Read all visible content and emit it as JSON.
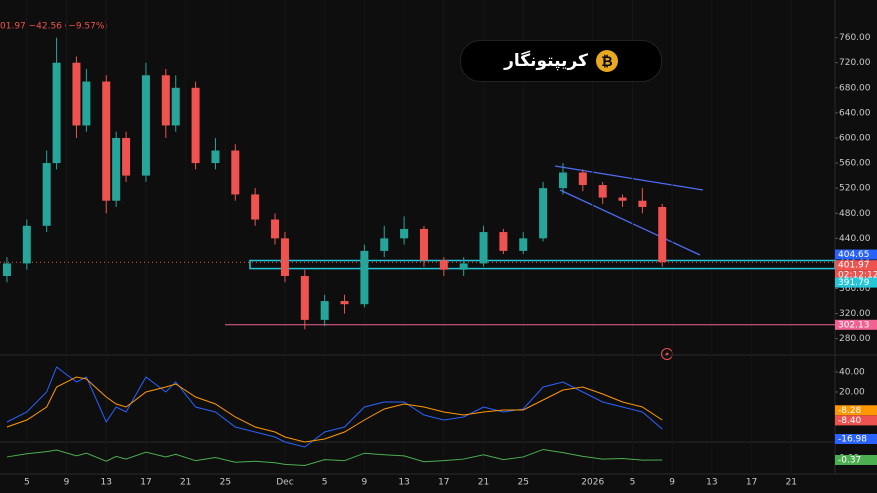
{
  "chart_data": {
    "type": "candlestick",
    "header": "01.97 −42.56 (−9.57%)",
    "x": [
      3,
      5,
      7,
      8,
      10,
      11,
      13,
      14,
      15,
      17,
      19,
      20,
      22,
      24,
      26,
      28,
      30,
      31,
      33,
      35,
      37,
      39,
      41,
      43,
      45,
      47,
      49,
      51,
      53,
      55,
      57,
      59,
      61,
      63,
      65,
      67,
      69
    ],
    "open": [
      380,
      400,
      460,
      560,
      720,
      620,
      690,
      500,
      600,
      540,
      700,
      620,
      680,
      560,
      580,
      510,
      470,
      440,
      380,
      310,
      340,
      335,
      420,
      440,
      455,
      405,
      390,
      400,
      450,
      420,
      440,
      520,
      545,
      525,
      505,
      500,
      490
    ],
    "high": [
      410,
      470,
      580,
      760,
      730,
      710,
      700,
      610,
      610,
      720,
      710,
      700,
      690,
      600,
      590,
      520,
      480,
      450,
      390,
      350,
      350,
      430,
      460,
      475,
      460,
      410,
      410,
      460,
      455,
      450,
      530,
      560,
      550,
      530,
      510,
      520,
      495
    ],
    "low": [
      370,
      390,
      450,
      550,
      600,
      610,
      480,
      490,
      530,
      530,
      600,
      610,
      550,
      550,
      500,
      460,
      430,
      370,
      295,
      300,
      320,
      330,
      410,
      430,
      395,
      380,
      380,
      395,
      415,
      415,
      435,
      510,
      515,
      495,
      490,
      480,
      395
    ],
    "close": [
      400,
      460,
      560,
      720,
      620,
      690,
      500,
      600,
      540,
      700,
      620,
      680,
      560,
      580,
      510,
      470,
      440,
      380,
      310,
      340,
      335,
      420,
      440,
      455,
      405,
      390,
      400,
      450,
      420,
      440,
      520,
      545,
      525,
      505,
      500,
      490,
      402
    ],
    "up_color": "#26a69a",
    "down_color": "#ef5350",
    "xlim": [
      2.3,
      86.4
    ],
    "xticks": [
      {
        "value": 5,
        "label": "5"
      },
      {
        "value": 9,
        "label": "9"
      },
      {
        "value": 13,
        "label": "13"
      },
      {
        "value": 17,
        "label": "17"
      },
      {
        "value": 21,
        "label": "21"
      },
      {
        "value": 25,
        "label": "25"
      },
      {
        "value": 31,
        "label": "Dec"
      },
      {
        "value": 35,
        "label": "5"
      },
      {
        "value": 39,
        "label": "9"
      },
      {
        "value": 43,
        "label": "13"
      },
      {
        "value": 47,
        "label": "17"
      },
      {
        "value": 51,
        "label": "21"
      },
      {
        "value": 55,
        "label": "25"
      },
      {
        "value": 62,
        "label": "2026"
      },
      {
        "value": 66,
        "label": "5"
      },
      {
        "value": 70,
        "label": "9"
      },
      {
        "value": 74,
        "label": "13"
      },
      {
        "value": 78,
        "label": "17"
      },
      {
        "value": 82,
        "label": "21"
      }
    ],
    "ylim": [
      254,
      820
    ],
    "yticks": [
      {
        "value": 280,
        "label": "280.00"
      },
      {
        "value": 320,
        "label": "320.00"
      },
      {
        "value": 360,
        "label": "360.00"
      },
      {
        "value": 400,
        "label": "400.00"
      },
      {
        "value": 440,
        "label": "440.00"
      },
      {
        "value": 480,
        "label": "480.00"
      },
      {
        "value": 520,
        "label": "520.00"
      },
      {
        "value": 560,
        "label": "560.00"
      },
      {
        "value": 600,
        "label": "600.00"
      },
      {
        "value": 640,
        "label": "640.00"
      },
      {
        "value": 680,
        "label": "680.00"
      },
      {
        "value": 720,
        "label": "720.00"
      },
      {
        "value": 760,
        "label": "760.00"
      }
    ],
    "levels": [
      {
        "value": 404.65,
        "color": "#2962ff"
      },
      {
        "value": 401.97,
        "color": "#ef5350"
      },
      {
        "value": 391.79,
        "color": "#26c6da"
      },
      {
        "value": 302.13,
        "color": "#f06292"
      }
    ],
    "countdown": "02:12:12",
    "indicators": [
      {
        "type": "line",
        "ylim": [
          -30,
          54
        ],
        "yticks": [
          {
            "value": 20,
            "label": "20.00"
          },
          {
            "value": 40,
            "label": "40.00"
          }
        ],
        "series": [
          {
            "color": "#2962ff",
            "values": [
              -10,
              0,
              20,
              45,
              30,
              35,
              -10,
              5,
              0,
              35,
              20,
              30,
              5,
              0,
              -15,
              -20,
              -25,
              -30,
              -35,
              -20,
              -15,
              5,
              10,
              10,
              -3,
              -8,
              -5,
              5,
              0,
              3,
              25,
              30,
              20,
              10,
              5,
              0,
              -17
            ]
          },
          {
            "color": "#ff9800",
            "values": [
              -15,
              -8,
              5,
              25,
              35,
              33,
              15,
              8,
              5,
              20,
              25,
              28,
              15,
              8,
              -5,
              -15,
              -20,
              -25,
              -30,
              -27,
              -20,
              -8,
              3,
              8,
              5,
              0,
              -3,
              0,
              2,
              2,
              12,
              22,
              25,
              18,
              10,
              5,
              -8
            ]
          }
        ],
        "last": [
          {
            "value": -8.28,
            "color": "#ff9800"
          },
          {
            "value": -8.4,
            "label": "-8.40",
            "color": "#ef5350"
          },
          {
            "value": -16.98,
            "color": "#2962ff"
          }
        ]
      },
      {
        "type": "line",
        "ylim": [
          -3,
          3
        ],
        "yticks": [
          {
            "value": 0,
            "label": "0.00"
          }
        ],
        "series": [
          {
            "color": "#4caf50",
            "values": [
              0.2,
              0.8,
              1.2,
              1.5,
              0.4,
              0.9,
              -0.6,
              0.3,
              -0.2,
              1.1,
              0.2,
              0.7,
              -0.5,
              0.1,
              -0.8,
              -0.6,
              -0.9,
              -1.2,
              -1.4,
              -0.3,
              -0.5,
              0.9,
              0.6,
              0.4,
              -0.7,
              -0.5,
              -0.2,
              0.6,
              -0.3,
              0.2,
              1.6,
              1.0,
              0.3,
              -0.2,
              -0.1,
              -0.4,
              -0.37
            ]
          }
        ],
        "last": [
          {
            "value": -0.37,
            "color": "#4caf50"
          }
        ]
      }
    ]
  },
  "logo": "کریپتونگار"
}
